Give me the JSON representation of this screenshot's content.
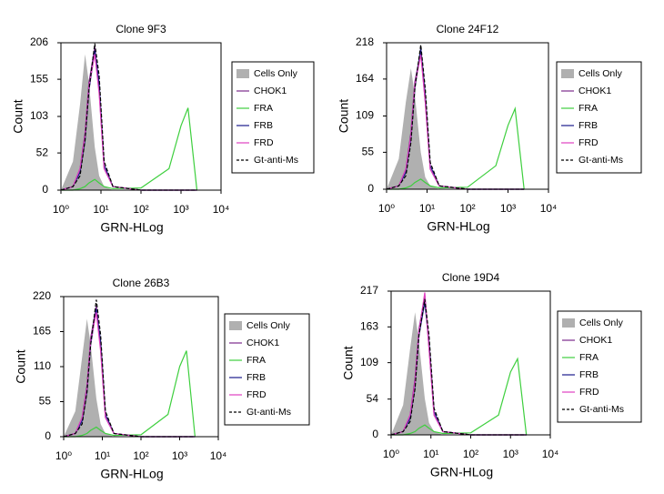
{
  "chart_data": [
    {
      "type": "line",
      "title": "Clone 9F3",
      "x_label": "GRN-HLog",
      "y_label": "Count",
      "log_x": true,
      "xlim": [
        1,
        10000
      ],
      "ylim": [
        0,
        206
      ],
      "xticks": [
        {
          "value": 1,
          "label": "10⁰"
        },
        {
          "value": 10,
          "label": "10¹"
        },
        {
          "value": 100,
          "label": "10²"
        },
        {
          "value": 1000,
          "label": "10³"
        },
        {
          "value": 10000,
          "label": "10⁴"
        }
      ],
      "yticks": [
        0,
        52,
        103,
        155,
        206
      ],
      "x": [
        1,
        2,
        3,
        4,
        5,
        7,
        9,
        12,
        20,
        100,
        500,
        1000,
        1500,
        2500
      ],
      "series": [
        {
          "name": "Cells Only",
          "color": "#b0b0b0",
          "fill": true,
          "values": [
            0,
            40,
            120,
            190,
            150,
            60,
            20,
            5,
            0,
            0,
            0,
            0,
            0,
            0
          ]
        },
        {
          "name": "CHOK1",
          "color": "#7b2a8c",
          "values": [
            0,
            5,
            30,
            80,
            150,
            200,
            140,
            30,
            5,
            0,
            0,
            0,
            0,
            0
          ]
        },
        {
          "name": "FRA",
          "color": "#3ecf3e",
          "values": [
            0,
            0,
            2,
            5,
            10,
            15,
            10,
            5,
            2,
            3,
            30,
            90,
            115,
            0
          ]
        },
        {
          "name": "FRB",
          "color": "#1a1a8c",
          "values": [
            0,
            5,
            25,
            70,
            140,
            195,
            150,
            35,
            5,
            0,
            0,
            0,
            0,
            0
          ]
        },
        {
          "name": "FRD",
          "color": "#e040c0",
          "values": [
            0,
            5,
            30,
            75,
            145,
            190,
            135,
            30,
            5,
            0,
            0,
            0,
            0,
            0
          ]
        },
        {
          "name": "Gt-anti-Ms",
          "color": "#000000",
          "dash": true,
          "values": [
            0,
            5,
            20,
            70,
            140,
            205,
            160,
            40,
            5,
            0,
            0,
            0,
            0,
            0
          ]
        }
      ]
    },
    {
      "type": "line",
      "title": "Clone 24F12",
      "x_label": "GRN-HLog",
      "y_label": "Count",
      "log_x": true,
      "xlim": [
        1,
        10000
      ],
      "ylim": [
        0,
        218
      ],
      "xticks": [
        {
          "value": 1,
          "label": "10⁰"
        },
        {
          "value": 10,
          "label": "10¹"
        },
        {
          "value": 100,
          "label": "10²"
        },
        {
          "value": 1000,
          "label": "10³"
        },
        {
          "value": 10000,
          "label": "10⁴"
        }
      ],
      "yticks": [
        0,
        55,
        109,
        164,
        218
      ],
      "x": [
        1,
        2,
        3,
        4,
        5,
        7,
        9,
        12,
        20,
        100,
        500,
        1000,
        1500,
        2500
      ],
      "series": [
        {
          "name": "Cells Only",
          "color": "#b0b0b0",
          "fill": true,
          "values": [
            0,
            45,
            130,
            180,
            140,
            55,
            18,
            5,
            0,
            0,
            0,
            0,
            0,
            0
          ]
        },
        {
          "name": "CHOK1",
          "color": "#7b2a8c",
          "values": [
            0,
            5,
            30,
            85,
            160,
            205,
            130,
            30,
            5,
            0,
            0,
            0,
            0,
            0
          ]
        },
        {
          "name": "FRA",
          "color": "#3ecf3e",
          "values": [
            0,
            0,
            2,
            5,
            10,
            15,
            10,
            5,
            2,
            3,
            35,
            95,
            120,
            0
          ]
        },
        {
          "name": "FRB",
          "color": "#1a1a8c",
          "values": [
            0,
            5,
            25,
            75,
            150,
            210,
            140,
            35,
            5,
            0,
            0,
            0,
            0,
            0
          ]
        },
        {
          "name": "FRD",
          "color": "#e040c0",
          "values": [
            0,
            5,
            30,
            80,
            155,
            200,
            130,
            30,
            5,
            0,
            0,
            0,
            0,
            0
          ]
        },
        {
          "name": "Gt-anti-Ms",
          "color": "#000000",
          "dash": true,
          "values": [
            0,
            5,
            20,
            70,
            150,
            215,
            150,
            40,
            5,
            0,
            0,
            0,
            0,
            0
          ]
        }
      ]
    },
    {
      "type": "line",
      "title": "Clone 26B3",
      "x_label": "GRN-HLog",
      "y_label": "Count",
      "log_x": true,
      "xlim": [
        1,
        10000
      ],
      "ylim": [
        0,
        220
      ],
      "xticks": [
        {
          "value": 1,
          "label": "10⁰"
        },
        {
          "value": 10,
          "label": "10¹"
        },
        {
          "value": 100,
          "label": "10²"
        },
        {
          "value": 1000,
          "label": "10³"
        },
        {
          "value": 10000,
          "label": "10⁴"
        }
      ],
      "yticks": [
        0,
        55,
        110,
        165,
        220
      ],
      "x": [
        1,
        2,
        3,
        4,
        5,
        7,
        9,
        12,
        20,
        100,
        500,
        1000,
        1500,
        2500
      ],
      "series": [
        {
          "name": "Cells Only",
          "color": "#b0b0b0",
          "fill": true,
          "values": [
            0,
            40,
            125,
            185,
            145,
            60,
            20,
            5,
            0,
            0,
            0,
            0,
            0,
            0
          ]
        },
        {
          "name": "CHOK1",
          "color": "#7b2a8c",
          "values": [
            0,
            5,
            30,
            80,
            155,
            205,
            140,
            30,
            5,
            0,
            0,
            0,
            0,
            0
          ]
        },
        {
          "name": "FRA",
          "color": "#3ecf3e",
          "values": [
            0,
            0,
            2,
            5,
            10,
            15,
            10,
            5,
            2,
            3,
            35,
            110,
            135,
            0
          ]
        },
        {
          "name": "FRB",
          "color": "#1a1a8c",
          "values": [
            0,
            5,
            25,
            70,
            145,
            200,
            150,
            35,
            5,
            0,
            0,
            0,
            0,
            0
          ]
        },
        {
          "name": "FRD",
          "color": "#e040c0",
          "values": [
            0,
            5,
            30,
            75,
            150,
            195,
            135,
            30,
            5,
            0,
            0,
            0,
            0,
            0
          ]
        },
        {
          "name": "Gt-anti-Ms",
          "color": "#000000",
          "dash": true,
          "values": [
            0,
            5,
            20,
            70,
            145,
            215,
            160,
            40,
            5,
            0,
            0,
            0,
            0,
            0
          ]
        }
      ]
    },
    {
      "type": "line",
      "title": "Clone 19D4",
      "x_label": "GRN-HLog",
      "y_label": "Count",
      "log_x": true,
      "xlim": [
        1,
        10000
      ],
      "ylim": [
        0,
        217
      ],
      "xticks": [
        {
          "value": 1,
          "label": "10⁰"
        },
        {
          "value": 10,
          "label": "10¹"
        },
        {
          "value": 100,
          "label": "10²"
        },
        {
          "value": 1000,
          "label": "10³"
        },
        {
          "value": 10000,
          "label": "10⁴"
        }
      ],
      "yticks": [
        0,
        54,
        109,
        163,
        217
      ],
      "x": [
        1,
        2,
        3,
        4,
        5,
        7,
        9,
        12,
        20,
        100,
        500,
        1000,
        1500,
        2500
      ],
      "series": [
        {
          "name": "Cells Only",
          "color": "#b0b0b0",
          "fill": true,
          "values": [
            0,
            45,
            130,
            185,
            140,
            55,
            18,
            5,
            0,
            0,
            0,
            0,
            0,
            0
          ]
        },
        {
          "name": "CHOK1",
          "color": "#7b2a8c",
          "values": [
            0,
            5,
            30,
            85,
            160,
            210,
            130,
            30,
            5,
            0,
            0,
            0,
            0,
            0
          ]
        },
        {
          "name": "FRA",
          "color": "#3ecf3e",
          "values": [
            0,
            0,
            2,
            5,
            10,
            15,
            10,
            5,
            2,
            3,
            30,
            95,
            115,
            0
          ]
        },
        {
          "name": "FRB",
          "color": "#1a1a8c",
          "values": [
            0,
            5,
            25,
            75,
            150,
            200,
            140,
            35,
            5,
            0,
            0,
            0,
            0,
            0
          ]
        },
        {
          "name": "FRD",
          "color": "#e040c0",
          "values": [
            0,
            5,
            30,
            80,
            155,
            215,
            130,
            30,
            5,
            0,
            0,
            0,
            0,
            0
          ]
        },
        {
          "name": "Gt-anti-Ms",
          "color": "#000000",
          "dash": true,
          "values": [
            0,
            5,
            20,
            70,
            150,
            205,
            150,
            40,
            5,
            0,
            0,
            0,
            0,
            0
          ]
        }
      ]
    }
  ]
}
